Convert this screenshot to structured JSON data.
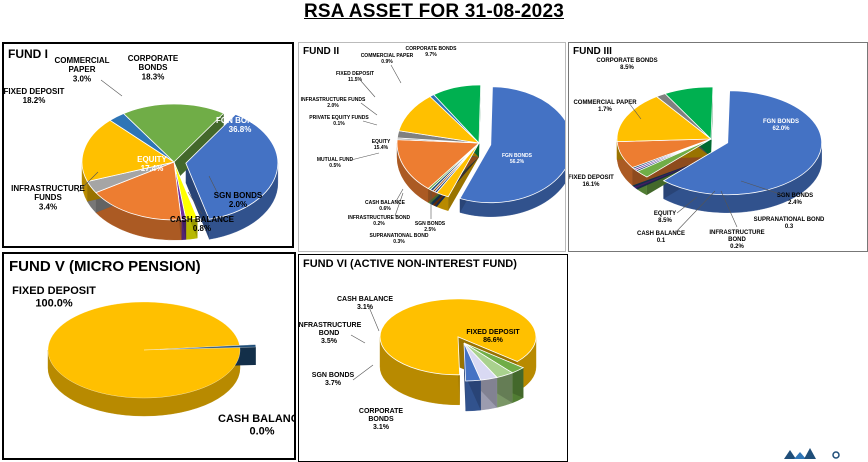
{
  "page": {
    "title": "RSA ASSET FOR 31-08-2023"
  },
  "colors": {
    "blue": "#4472C4",
    "orange": "#ED7D31",
    "gold": "#FFC000",
    "green": "#70AD47",
    "emerald": "#00B050",
    "gray": "#A5A5A5",
    "yellow": "#FFFF00",
    "purple": "#7030A0",
    "navy": "#1F4E79",
    "teal": "#2E75B6"
  },
  "chart_data": [
    {
      "id": "fund1",
      "type": "pie",
      "title": "FUND I",
      "series": [
        {
          "label": "FGN BONDS",
          "value": 36.8,
          "display": "36.8%",
          "color": "#4472C4"
        },
        {
          "label": "SGN BONDS",
          "value": 2.0,
          "display": "2.0%",
          "color": "#FFFF00"
        },
        {
          "label": "CASH BALANCE",
          "value": 0.8,
          "display": "0.8%",
          "color": "#7030A0"
        },
        {
          "label": "EQUITY",
          "value": 17.4,
          "display": "17.4%",
          "color": "#ED7D31"
        },
        {
          "label": "INFRASTRUCTURE FUNDS",
          "value": 3.4,
          "display": "3.4%",
          "color": "#A5A5A5"
        },
        {
          "label": "FIXED DEPOSIT",
          "value": 18.2,
          "display": "18.2%",
          "color": "#FFC000"
        },
        {
          "label": "COMMERCIAL PAPER",
          "value": 3.0,
          "display": "3.0%",
          "color": "#2E75B6"
        },
        {
          "label": "CORPORATE BONDS",
          "value": 18.3,
          "display": "18.3%",
          "color": "#70AD47"
        }
      ]
    },
    {
      "id": "fund2",
      "type": "pie",
      "title": "FUND II",
      "series": [
        {
          "label": "FGN BONDS",
          "value": 56.2,
          "display": "56.2%",
          "color": "#4472C4"
        },
        {
          "label": "SGN BONDS",
          "value": 2.5,
          "display": "2.5%",
          "color": "#FFC000"
        },
        {
          "label": "SUPRANATIONAL BOND",
          "value": 0.3,
          "display": "0.3%",
          "color": "#264478"
        },
        {
          "label": "INFRASTRUCTURE BOND",
          "value": 0.2,
          "display": "0.2%",
          "color": "#9E480E"
        },
        {
          "label": "CASH BALANCE",
          "value": 0.6,
          "display": "0.6%",
          "color": "#1F4E79"
        },
        {
          "label": "MUTUAL FUND",
          "value": 0.5,
          "display": "0.5%",
          "color": "#70AD47"
        },
        {
          "label": "EQUITY",
          "value": 15.4,
          "display": "15.4%",
          "color": "#ED7D31"
        },
        {
          "label": "PRIVATE EQUITY FUNDS",
          "value": 0.1,
          "display": "0.1%",
          "color": "#A5A5A5"
        },
        {
          "label": "INFRASTRUCTURE FUNDS",
          "value": 2.0,
          "display": "2.0%",
          "color": "#808080"
        },
        {
          "label": "FIXED DEPOSIT",
          "value": 11.5,
          "display": "11.5%",
          "color": "#FFC000"
        },
        {
          "label": "COMMERCIAL PAPER",
          "value": 0.9,
          "display": "0.9%",
          "color": "#2E75B6"
        },
        {
          "label": "CORPORATE BONDS",
          "value": 9.7,
          "display": "9.7%",
          "color": "#00B050"
        }
      ]
    },
    {
      "id": "fund3",
      "type": "pie",
      "title": "FUND III",
      "series": [
        {
          "label": "FGN BONDS",
          "value": 62.0,
          "display": "62.0%",
          "color": "#4472C4"
        },
        {
          "label": "SGN BONDS",
          "value": 2.4,
          "display": "2.4%",
          "color": "#70AD47"
        },
        {
          "label": "SUPRANATIONAL BOND",
          "value": 0.3,
          "display": "0.3",
          "color": "#264478"
        },
        {
          "label": "INFRASTRUCTURE BOND",
          "value": 0.2,
          "display": "0.2%",
          "color": "#7030A0"
        },
        {
          "label": "CASH BALANCE",
          "value": 0.1,
          "display": "0.1",
          "color": "#1F4E79"
        },
        {
          "label": "EQUITY",
          "value": 8.5,
          "display": "8.5%",
          "color": "#ED7D31"
        },
        {
          "label": "FIXED DEPOSIT",
          "value": 16.1,
          "display": "16.1%",
          "color": "#FFC000"
        },
        {
          "label": "COMMERCIAL PAPER",
          "value": 1.7,
          "display": "1.7%",
          "color": "#808080"
        },
        {
          "label": "CORPORATE BONDS",
          "value": 8.5,
          "display": "8.5%",
          "color": "#00B050"
        }
      ]
    },
    {
      "id": "fund5",
      "type": "pie",
      "title": "FUND V (MICRO PENSION)",
      "series": [
        {
          "label": "FIXED DEPOSIT",
          "value": 100.0,
          "display": "100.0%",
          "color": "#FFC000"
        },
        {
          "label": "CASH BALANCE",
          "value": 0.0,
          "display": "0.0%",
          "color": "#1F4E79"
        }
      ]
    },
    {
      "id": "fund6",
      "type": "pie",
      "title": "FUND VI (ACTIVE NON-INTEREST FUND)",
      "series": [
        {
          "label": "FIXED DEPOSIT",
          "value": 86.6,
          "display": "86.6%",
          "color": "#FFC000"
        },
        {
          "label": "CORPORATE BONDS",
          "value": 3.1,
          "display": "3.1%",
          "color": "#70AD47"
        },
        {
          "label": "SGN BONDS",
          "value": 3.7,
          "display": "3.7%",
          "color": "#A9D18E"
        },
        {
          "label": "INFRASTRUCTURE BOND",
          "value": 3.5,
          "display": "3.5%",
          "color": "#D9D9F3"
        },
        {
          "label": "CASH BALANCE",
          "value": 3.1,
          "display": "3.1%",
          "color": "#4472C4"
        }
      ]
    }
  ]
}
